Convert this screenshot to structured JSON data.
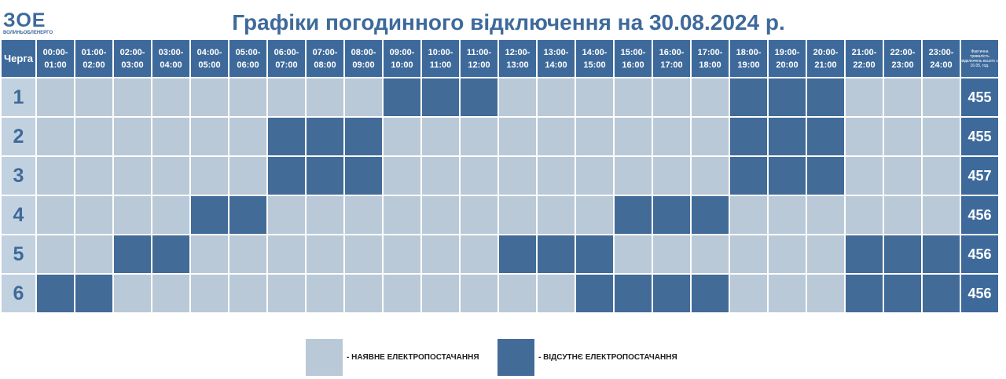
{
  "logo": {
    "mark": "ЗОЕ",
    "subtitle": "ВОЛИНЬОБЛЕНЕРГО"
  },
  "title": "Графіки погодинного відключення на 30.08.2024 р.",
  "header": {
    "queue_label": "Черга",
    "hours": [
      [
        "00:00-",
        "01:00"
      ],
      [
        "01:00-",
        "02:00"
      ],
      [
        "02:00-",
        "03:00"
      ],
      [
        "03:00-",
        "04:00"
      ],
      [
        "04:00-",
        "05:00"
      ],
      [
        "05:00-",
        "06:00"
      ],
      [
        "06:00-",
        "07:00"
      ],
      [
        "07:00-",
        "08:00"
      ],
      [
        "08:00-",
        "09:00"
      ],
      [
        "09:00-",
        "10:00"
      ],
      [
        "10:00-",
        "11:00"
      ],
      [
        "11:00-",
        "12:00"
      ],
      [
        "12:00-",
        "13:00"
      ],
      [
        "13:00-",
        "14:00"
      ],
      [
        "14:00-",
        "15:00"
      ],
      [
        "15:00-",
        "16:00"
      ],
      [
        "16:00-",
        "17:00"
      ],
      [
        "17:00-",
        "18:00"
      ],
      [
        "18:00-",
        "19:00"
      ],
      [
        "19:00-",
        "20:00"
      ],
      [
        "20:00-",
        "21:00"
      ],
      [
        "21:00-",
        "22:00"
      ],
      [
        "22:00-",
        "23:00"
      ],
      [
        "23:00-",
        "24:00"
      ]
    ],
    "duration_label": "Фактична тривалість відключень всього з 16.05, год."
  },
  "queues": [
    {
      "label": "1",
      "outage": [
        9,
        10,
        11,
        18,
        19,
        20
      ],
      "total": "455"
    },
    {
      "label": "2",
      "outage": [
        6,
        7,
        8,
        18,
        19,
        20
      ],
      "total": "455"
    },
    {
      "label": "3",
      "outage": [
        6,
        7,
        8,
        18,
        19,
        20
      ],
      "total": "457"
    },
    {
      "label": "4",
      "outage": [
        4,
        5,
        15,
        16,
        17
      ],
      "total": "456"
    },
    {
      "label": "5",
      "outage": [
        2,
        3,
        12,
        13,
        14,
        21,
        22,
        23
      ],
      "total": "456"
    },
    {
      "label": "6",
      "outage": [
        0,
        1,
        14,
        15,
        16,
        17,
        21,
        22,
        23
      ],
      "total": "456"
    }
  ],
  "legend": {
    "available": "- НАЯВНЕ ЕЛЕКТРОПОСТАЧАННЯ",
    "absent": "- ВІДСУТНЄ ЕЛЕКТРОПОСТАЧАННЯ"
  },
  "colors": {
    "available": "#b9c9d7",
    "absent": "#426b98",
    "header": "#3e6a9b"
  }
}
